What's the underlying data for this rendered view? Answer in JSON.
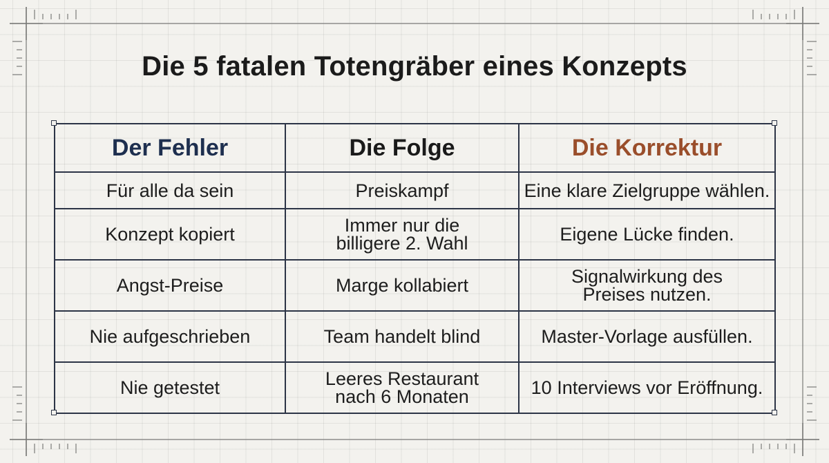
{
  "title": "Die 5 fatalen Totengräber eines Konzepts",
  "colors": {
    "background": "#f3f2ee",
    "grid_line": "#2c3446",
    "header_fehler": "#1e2f4f",
    "header_folge": "#1a1a1a",
    "header_korrektur": "#9a4e2b"
  },
  "table": {
    "headers": [
      "Der Fehler",
      "Die Folge",
      "Die Korrektur"
    ],
    "rows": [
      {
        "fehler": "Für alle da sein",
        "folge": "Preiskampf",
        "korrektur": "Eine klare Zielgruppe wählen."
      },
      {
        "fehler": "Konzept kopiert",
        "folge": "Immer nur die billigere 2. Wahl",
        "korrektur": "Eigene Lücke finden."
      },
      {
        "fehler": "Angst-Preise",
        "folge": "Marge kollabiert",
        "korrektur": "Signalwirkung des Preises nutzen."
      },
      {
        "fehler": "Nie aufgeschrieben",
        "folge": "Team handelt blind",
        "korrektur": "Master-Vorlage ausfüllen."
      },
      {
        "fehler": "Nie getestet",
        "folge": "Leeres Restaurant nach 6 Monaten",
        "korrektur": "10 Interviews vor Eröffnung."
      }
    ]
  }
}
